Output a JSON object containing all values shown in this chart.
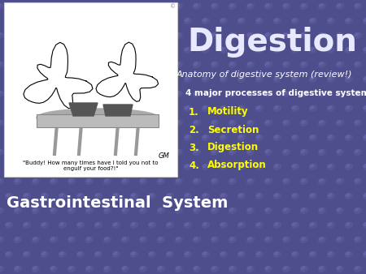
{
  "title": "Digestion",
  "subtitle": "Anatomy of digestive system (review!)",
  "bold_text": "4 major processes of digestive system:",
  "list_items": [
    "Motility",
    "Secretion",
    "Digestion",
    "Absorption"
  ],
  "bottom_left_label": "Gastrointestinal  System",
  "bg_color": "#4e4e8c",
  "title_color": "#e8e8ff",
  "subtitle_color": "#ffffff",
  "bold_text_color": "#ffffff",
  "list_color": "#ffff00",
  "bottom_label_color": "#ffffff",
  "dot_color": "#5a5a9a",
  "dot_highlight": "#6868b0",
  "image_caption_line1": "\"Buddy! How many times have I told you not to",
  "image_caption_line2": "engulf your food?!\""
}
